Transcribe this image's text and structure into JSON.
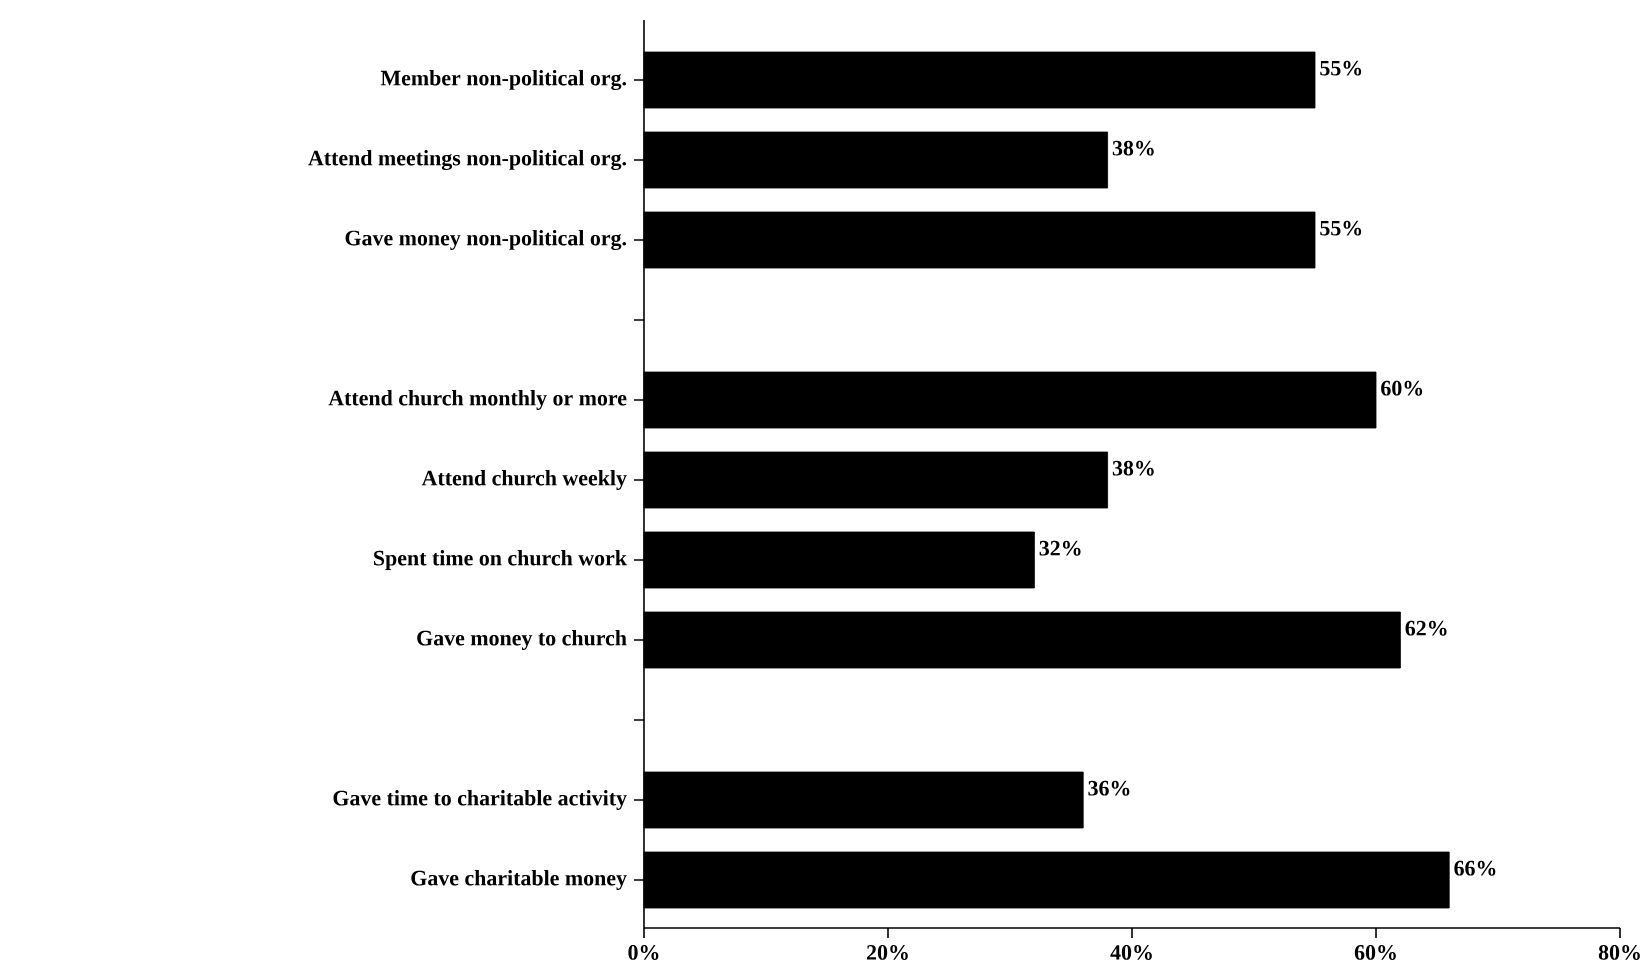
{
  "chart_data": {
    "type": "bar",
    "orientation": "horizontal",
    "categories": [
      "Member non-political org.",
      "Attend meetings non-political org.",
      "Gave money non-political org.",
      null,
      "Attend church monthly or more",
      "Attend church weekly",
      "Spent time on church work",
      "Gave money to church",
      null,
      "Gave time to charitable activity",
      "Gave charitable money"
    ],
    "values": [
      55,
      38,
      55,
      null,
      60,
      38,
      32,
      62,
      null,
      36,
      66
    ],
    "value_labels": [
      "55%",
      "38%",
      "55%",
      null,
      "60%",
      "38%",
      "32%",
      "62%",
      null,
      "36%",
      "66%"
    ],
    "color": "#000000",
    "xlim": [
      0,
      80
    ],
    "xticks": [
      {
        "value": 0,
        "label": "0%"
      },
      {
        "value": 20,
        "label": "20%"
      },
      {
        "value": 40,
        "label": "40%"
      },
      {
        "value": 60,
        "label": "60%"
      },
      {
        "value": 80,
        "label": "80%"
      }
    ],
    "grid": false
  }
}
